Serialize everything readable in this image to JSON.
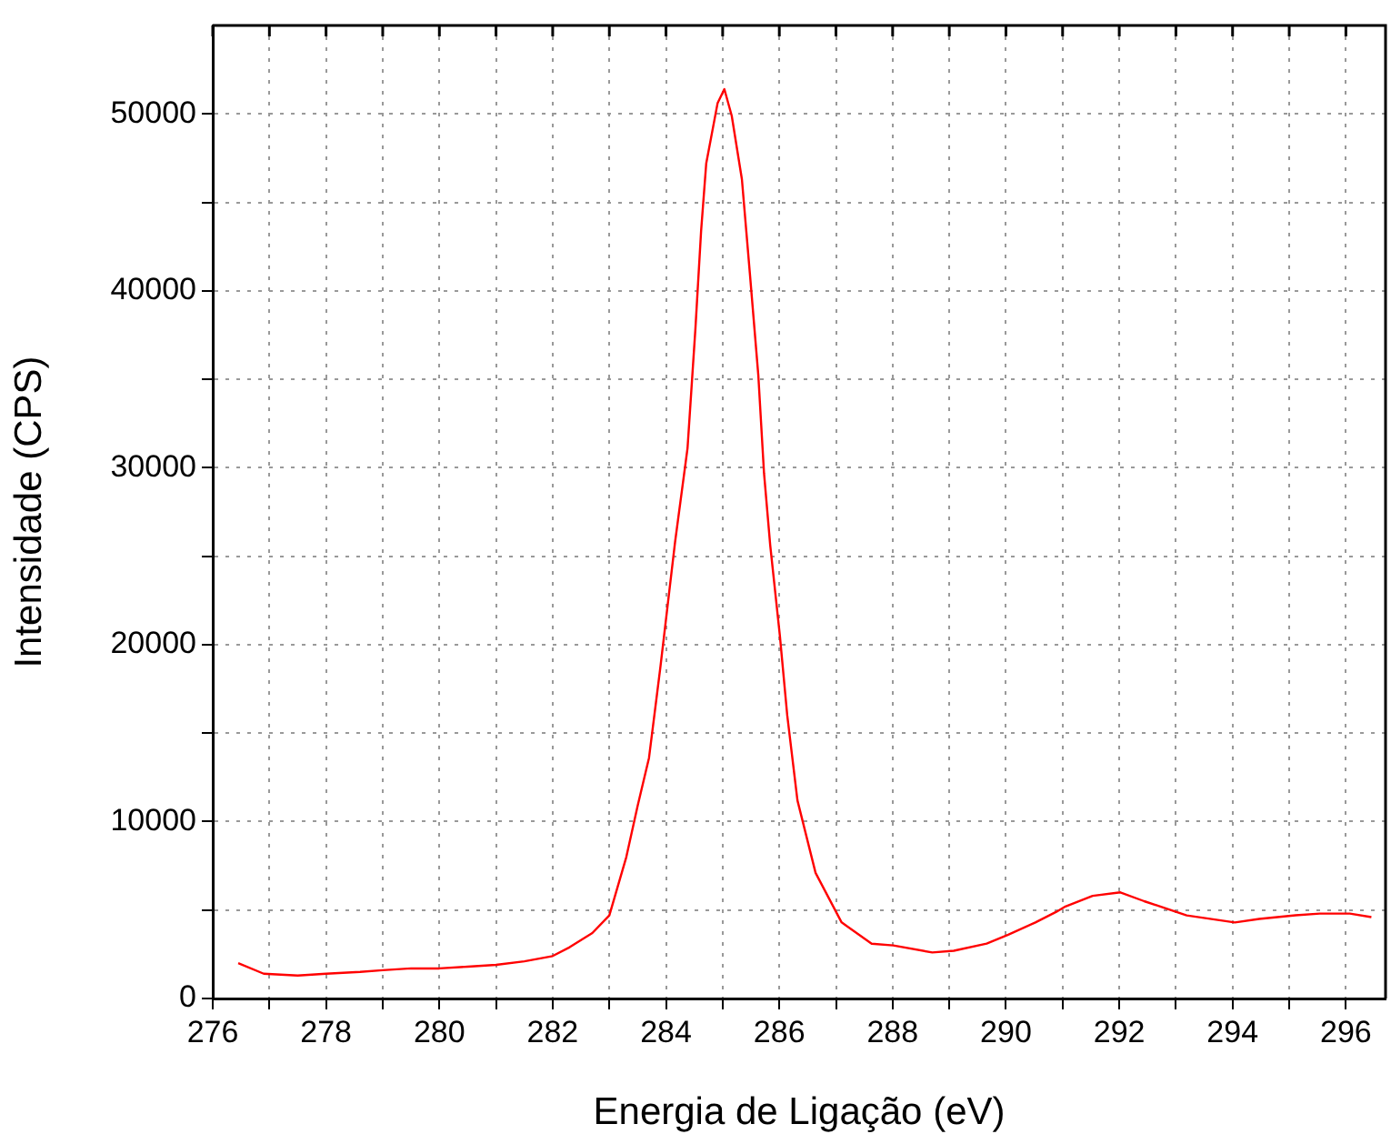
{
  "chart_data": {
    "type": "line",
    "xlabel": "Energia de Ligação (eV)",
    "ylabel": "Intensidade (CPS)",
    "x": [
      276.45,
      276.9,
      277.5,
      278.0,
      278.6,
      279.0,
      279.5,
      280.0,
      280.5,
      281.0,
      281.5,
      282.0,
      282.3,
      282.7,
      283.0,
      283.3,
      283.5,
      283.7,
      283.9,
      284.16,
      284.38,
      284.52,
      284.62,
      284.71,
      284.91,
      285.03,
      285.16,
      285.34,
      285.48,
      285.63,
      285.73,
      285.84,
      286.01,
      286.14,
      286.32,
      286.64,
      287.1,
      287.63,
      288.01,
      288.7,
      289.08,
      289.66,
      290.04,
      290.52,
      290.89,
      291.05,
      291.53,
      292.02,
      292.44,
      293.19,
      294.04,
      294.47,
      295.11,
      295.54,
      296.07,
      296.45
    ],
    "series": [
      {
        "color": "#ff0000",
        "values": [
          2000,
          1400,
          1300,
          1400,
          1500,
          1600,
          1700,
          1700,
          1800,
          1900,
          2100,
          2400,
          2900,
          3700,
          4700,
          8000,
          10900,
          13600,
          18700,
          25800,
          31100,
          37900,
          43400,
          47200,
          50600,
          51400,
          49900,
          46300,
          41000,
          35200,
          29700,
          25600,
          20500,
          16000,
          11200,
          7100,
          4300,
          3100,
          3000,
          2600,
          2700,
          3100,
          3600,
          4300,
          4900,
          5200,
          5800,
          6000,
          5500,
          4700,
          4300,
          4500,
          4700,
          4800,
          4800,
          4600
        ]
      }
    ],
    "xlim": [
      276,
      296.7
    ],
    "ylim": [
      0,
      55000
    ],
    "xticks": [
      276,
      {
        "value": 277,
        "label": null
      },
      278,
      {
        "value": 279,
        "label": null
      },
      280,
      {
        "value": 281,
        "label": null
      },
      282,
      {
        "value": 283,
        "label": null
      },
      284,
      {
        "value": 285,
        "label": null
      },
      286,
      {
        "value": 287,
        "label": null
      },
      288,
      {
        "value": 289,
        "label": null
      },
      290,
      {
        "value": 291,
        "label": null
      },
      292,
      {
        "value": 293,
        "label": null
      },
      294,
      {
        "value": 295,
        "label": null
      },
      296
    ],
    "yticks": [
      0,
      {
        "value": 5000,
        "label": null
      },
      10000,
      {
        "value": 15000,
        "label": null
      },
      20000,
      {
        "value": 25000,
        "label": null
      },
      30000,
      {
        "value": 35000,
        "label": null
      },
      40000,
      {
        "value": 45000,
        "label": null
      },
      50000
    ],
    "grid": true,
    "legend": false,
    "marker": "none",
    "line_style": "solid"
  }
}
